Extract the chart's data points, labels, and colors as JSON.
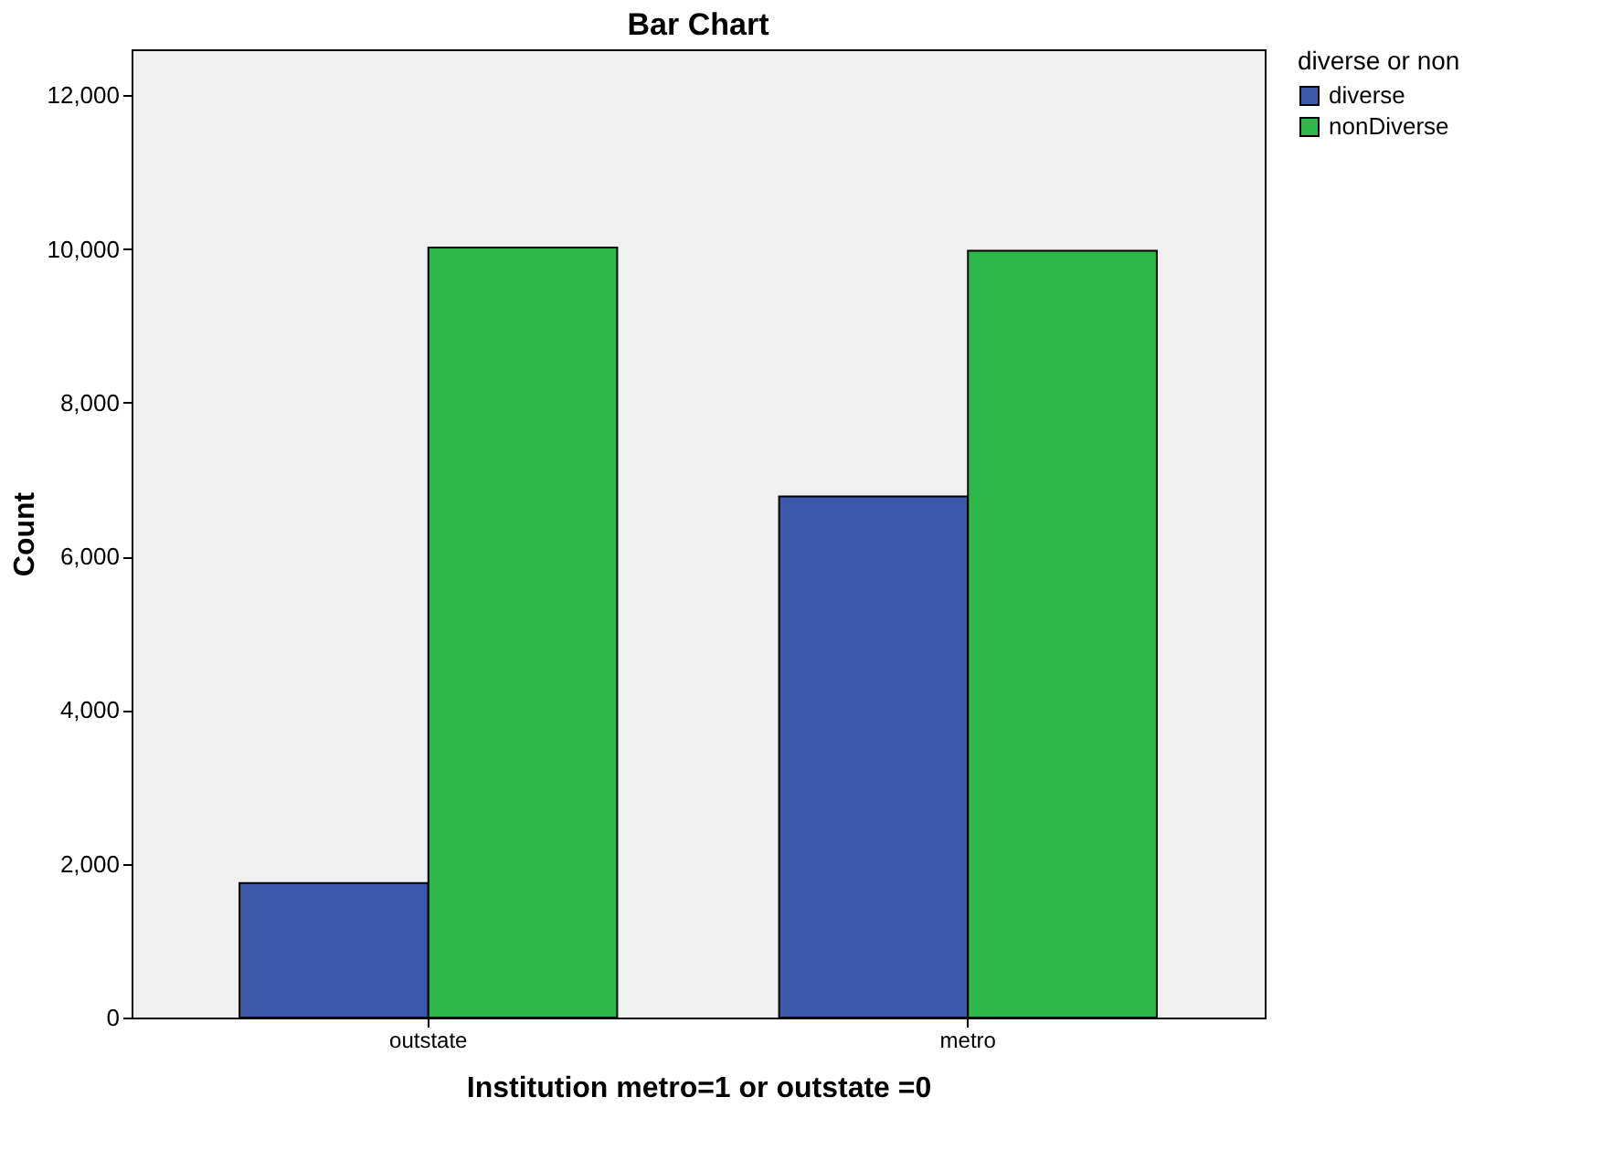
{
  "chart_data": {
    "type": "bar",
    "title": "Bar Chart",
    "xlabel": "Institution metro=1 or outstate =0",
    "ylabel": "Count",
    "legend_title": "diverse or non",
    "categories": [
      "outstate",
      "metro"
    ],
    "series": [
      {
        "name": "diverse",
        "color": "#3c58a8",
        "values": [
          1750,
          6780
        ]
      },
      {
        "name": "nonDiverse",
        "color": "#2fb84a",
        "values": [
          10020,
          9980
        ]
      }
    ],
    "ylim": [
      0,
      12600
    ],
    "yticks": [
      0,
      {
        "value": 2000,
        "label": "2,000"
      },
      {
        "value": 4000,
        "label": "4,000"
      },
      {
        "value": 6000,
        "label": "6,000"
      },
      {
        "value": 8000,
        "label": "8,000"
      },
      {
        "value": 10000,
        "label": "10,000"
      },
      {
        "value": 12000,
        "label": "12,000"
      }
    ],
    "grid": false,
    "legend": "top right"
  }
}
